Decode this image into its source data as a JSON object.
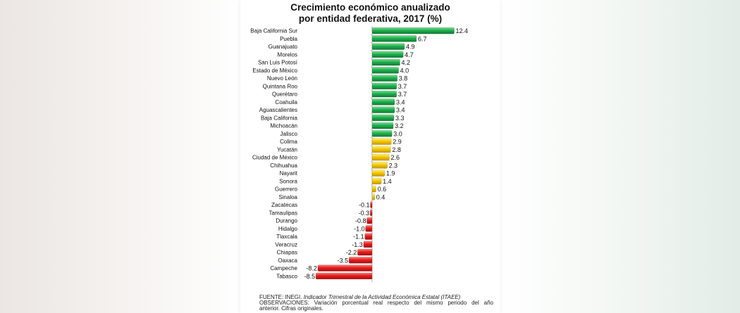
{
  "chart_data": {
    "type": "bar",
    "orientation": "horizontal",
    "title": "Crecimiento económico anualizado",
    "subtitle": "por entidad federativa, 2017 (%)",
    "categories": [
      "Baja California Sur",
      "Puebla",
      "Guanajuato",
      "Morelos",
      "San Luis Potosí",
      "Estado de México",
      "Nuevo León",
      "Quintana Roo",
      "Querétaro",
      "Coahuila",
      "Aguascalientes",
      "Baja California",
      "Michoacán",
      "Jalisco",
      "Colima",
      "Yucatán",
      "Ciudad de México",
      "Chihuahua",
      "Nayarit",
      "Sonora",
      "Guerrero",
      "Sinaloa",
      "Zacatecas",
      "Tamaulipas",
      "Durango",
      "Hidalgo",
      "Tlaxcala",
      "Veracruz",
      "Chiapas",
      "Oaxaca",
      "Campeche",
      "Tabasco"
    ],
    "values": [
      12.4,
      6.7,
      4.9,
      4.7,
      4.2,
      4.0,
      3.8,
      3.7,
      3.7,
      3.4,
      3.4,
      3.3,
      3.2,
      3.0,
      2.9,
      2.8,
      2.6,
      2.3,
      1.9,
      1.4,
      0.6,
      0.4,
      -0.1,
      -0.3,
      -0.8,
      -1.0,
      -1.1,
      -1.3,
      -2.2,
      -3.5,
      -8.2,
      -8.5
    ],
    "value_labels": [
      "12.4",
      "6.7",
      "4.9",
      "4.7",
      "4.2",
      "4.0",
      "3.8",
      "3.7",
      "3.7",
      "3.4",
      "3.4",
      "3.3",
      "3.2",
      "3.0",
      "2.9",
      "2.8",
      "2.6",
      "2.3",
      "1.9",
      "1.4",
      "0.6",
      "0.4",
      "-0.1",
      "-0.3",
      "-0.8",
      "-1.0",
      "-1.1",
      "-1.3",
      "-2.2",
      "-3.5",
      "-8.2",
      "-8.5"
    ],
    "xlim": [
      -8.5,
      12.4
    ],
    "colors": {
      "high": "#1aa64a",
      "mid": "#f2c400",
      "low": "#e01b1b"
    }
  },
  "footer": {
    "source_prefix": "FUENTE: INEGI.",
    "source_title": "Indicador Trimestral de la Actividad Económica Estatal (ITAEE)",
    "obs_line1": "OBSERVACIONES: Variación porcentual real respecto del mismo periodo del año",
    "obs_line2": "anterior. Cifras originales."
  }
}
